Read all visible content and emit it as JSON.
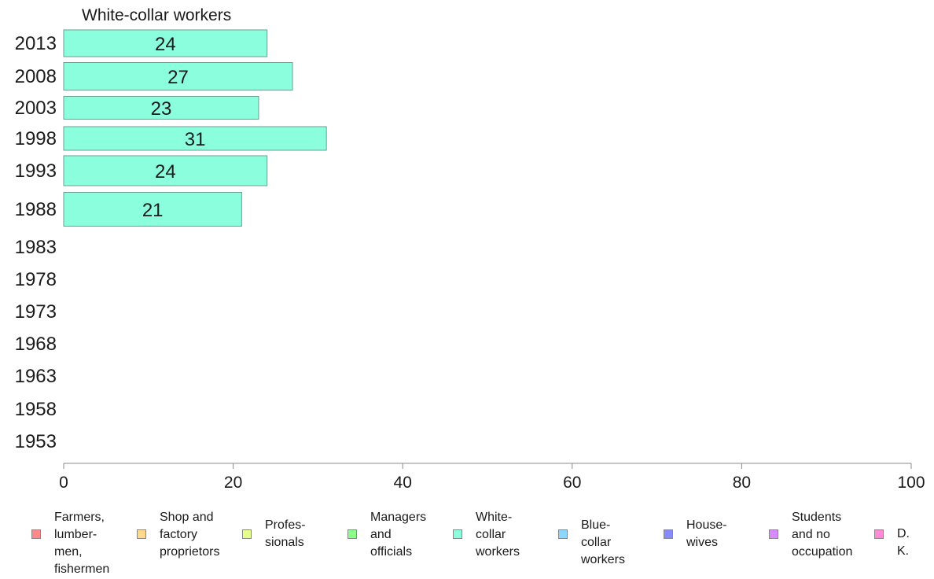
{
  "chart_data": {
    "type": "bar",
    "orientation": "horizontal",
    "title": "White-collar workers",
    "categories": [
      "2013",
      "2008",
      "2003",
      "1998",
      "1993",
      "1988",
      "1983",
      "1978",
      "1973",
      "1968",
      "1963",
      "1958",
      "1953"
    ],
    "series": [
      {
        "name": "White-collar workers",
        "values": [
          24,
          27,
          23,
          31,
          24,
          21,
          null,
          null,
          null,
          null,
          null,
          null,
          null
        ],
        "color": "#8bffdd"
      }
    ],
    "data_labels": [
      "24",
      "27",
      "23",
      "31",
      "24",
      "21",
      "",
      "",
      "",
      "",
      "",
      "",
      ""
    ],
    "xlim": [
      0,
      100
    ],
    "xticks": [
      0,
      20,
      40,
      60,
      80,
      100
    ],
    "xlabel": "",
    "ylabel": "",
    "grid": false,
    "legend_position": "bottom",
    "legend": [
      {
        "label": "Farmers,\nlumber-\nmen,\nfishermen",
        "color": "#ff8a8a"
      },
      {
        "label": "Shop and\nfactory\nproprietors",
        "color": "#ffd98a"
      },
      {
        "label": "Profes-\nsionals",
        "color": "#e6ff8a"
      },
      {
        "label": "Managers\nand\nofficials",
        "color": "#8aff8a"
      },
      {
        "label": "White-\ncollar\nworkers",
        "color": "#8bffdd"
      },
      {
        "label": "Blue-collar\nworkers",
        "color": "#8ad8ff"
      },
      {
        "label": "House-\nwives",
        "color": "#8a8aff"
      },
      {
        "label": "Students\nand no\noccupation",
        "color": "#d98aff"
      },
      {
        "label": "D. K.",
        "color": "#ff8ad8"
      }
    ]
  }
}
